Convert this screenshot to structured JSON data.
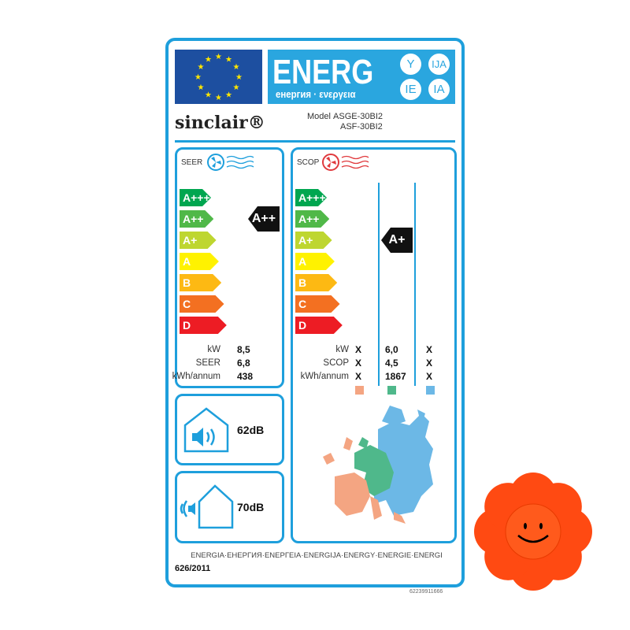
{
  "header": {
    "energ": "ENERG",
    "subtitle": "енергия · ενεργεια",
    "lang_circles": [
      "Y",
      "IJA",
      "IE",
      "IA"
    ]
  },
  "brand": "sinclair®",
  "model": {
    "label": "Model",
    "indoor": "ASGE-30BI2",
    "outdoor": "ASF-30BI2"
  },
  "classes": [
    "A+++",
    "A++",
    "A+",
    "A",
    "B",
    "C",
    "D"
  ],
  "class_colors": [
    "#00a650",
    "#50b848",
    "#bed630",
    "#fff200",
    "#fdb913",
    "#f37021",
    "#ed1c24"
  ],
  "cooling": {
    "title": "SEER",
    "icon": "fan-cooling-icon",
    "rating": "A++",
    "rating_index": 1,
    "rows": [
      {
        "label": "kW",
        "value": "8,5"
      },
      {
        "label": "SEER",
        "value": "6,8"
      },
      {
        "label": "kWh/annum",
        "value": "438"
      }
    ]
  },
  "heating": {
    "title": "SCOP",
    "icon": "fan-heating-icon",
    "rating": "A+",
    "rating_index": 2,
    "row_labels": [
      "kW",
      "SCOP",
      "kWh/annum"
    ],
    "columns": [
      {
        "zone": "warmer",
        "color": "#f4a582",
        "values": [
          "X",
          "X",
          "X"
        ]
      },
      {
        "zone": "average",
        "color": "#4fb88b",
        "values": [
          "6,0",
          "4,5",
          "1867"
        ]
      },
      {
        "zone": "colder",
        "color": "#6cb8e6",
        "values": [
          "X",
          "X",
          "X"
        ]
      }
    ]
  },
  "noise": {
    "indoor": "62dB",
    "outdoor": "70dB"
  },
  "footer": {
    "languages": "ENERGIA·ЕНЕРГИЯ·ΕΝΕΡΓΕΙΑ·ENERGIJA·ENERGY·ENERGIE·ENERGI",
    "regulation": "626/2011",
    "code": "62239911666"
  },
  "accent": "#1e9fdc"
}
